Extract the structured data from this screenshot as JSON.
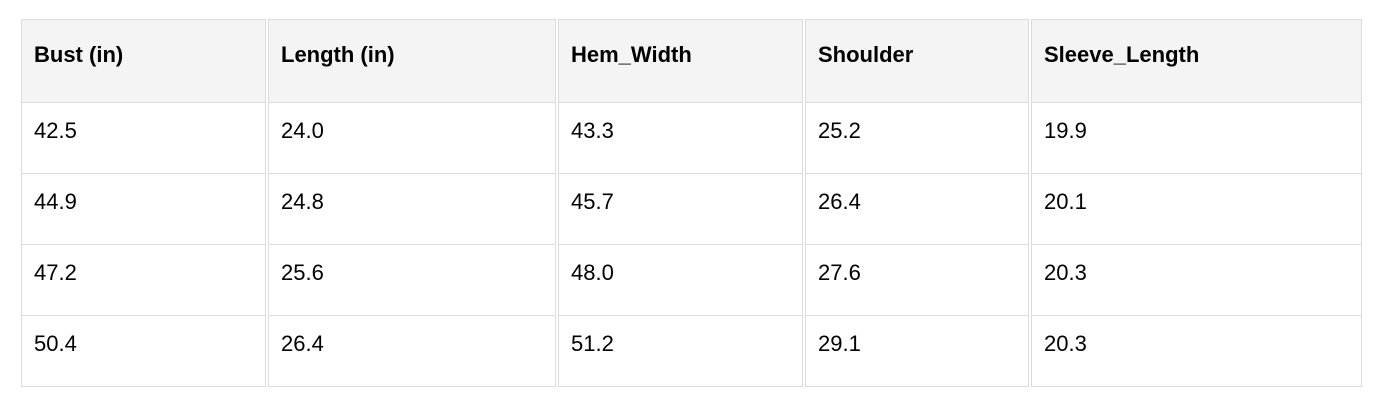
{
  "table": {
    "headers": [
      "Bust (in)",
      "Length (in)",
      "Hem_Width",
      "Shoulder",
      "Sleeve_Length"
    ],
    "rows": [
      [
        "42.5",
        "24.0",
        "43.3",
        "25.2",
        "19.9"
      ],
      [
        "44.9",
        "24.8",
        "45.7",
        "26.4",
        "20.1"
      ],
      [
        "47.2",
        "25.6",
        "48.0",
        "27.6",
        "20.3"
      ],
      [
        "50.4",
        "26.4",
        "51.2",
        "29.1",
        "20.3"
      ]
    ]
  }
}
